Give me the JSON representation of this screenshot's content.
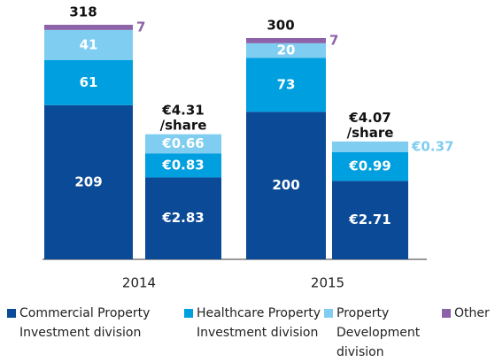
{
  "chart_data": {
    "type": "bar",
    "stacked": true,
    "categories": [
      "2014",
      "2015"
    ],
    "series": [
      {
        "name": "Commercial Property Investment division",
        "color": "#0b4a96",
        "values": [
          209,
          200
        ],
        "per_share": [
          2.83,
          2.71
        ],
        "per_share_labels": [
          "€2.83",
          "€2.71"
        ]
      },
      {
        "name": "Healthcare Property Investment division",
        "color": "#009fe0",
        "values": [
          61,
          73
        ],
        "per_share": [
          0.83,
          0.99
        ],
        "per_share_labels": [
          "€0.83",
          "€0.99"
        ]
      },
      {
        "name": "Property Development division",
        "color": "#7fcdf0",
        "values": [
          41,
          20
        ],
        "per_share": [
          0.66,
          0.37
        ],
        "per_share_labels": [
          "€0.66",
          "€0.37"
        ]
      },
      {
        "name": "Other",
        "color": "#8c62a9",
        "values": [
          7,
          7
        ],
        "per_share": [
          null,
          null
        ],
        "per_share_labels": [
          null,
          null
        ]
      }
    ],
    "totals": [
      318,
      300
    ],
    "per_share_totals": [
      4.31,
      4.07
    ],
    "per_share_total_labels": [
      "€4.31\n/share",
      "€4.07\n/share"
    ]
  }
}
